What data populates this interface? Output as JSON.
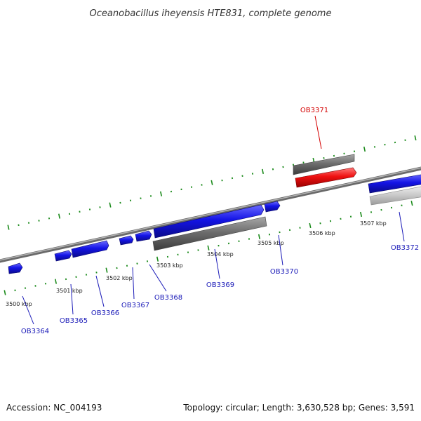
{
  "title": "Oceanobacillus iheyensis HTE831, complete genome",
  "footer": {
    "accession": "Accession: NC_004193",
    "stats": "Topology: circular; Length: 3,630,528 bp; Genes: 3,591"
  },
  "colors": {
    "forward_gene": "#1414e6",
    "reverse_gene": "#1414e6",
    "highlight_gene": "#ee1010",
    "gene_label": "#1a1ab8",
    "highlight_label": "#d40000",
    "tick": "#1a8a1a",
    "backbone": "#8c8c8c",
    "track_dark": "#6e6e6e",
    "track_light": "#c8c8c8"
  },
  "axis": {
    "unit": "kbp",
    "labels": [
      "3500 kbp",
      "3501 kbp",
      "3502 kbp",
      "3503 kbp",
      "3504 kbp",
      "3505 kbp",
      "3506 kbp",
      "3507 kbp"
    ]
  },
  "genes": [
    {
      "name": "OB3364"
    },
    {
      "name": "OB3365"
    },
    {
      "name": "OB3366"
    },
    {
      "name": "OB3367"
    },
    {
      "name": "OB3368"
    },
    {
      "name": "OB3369"
    },
    {
      "name": "OB3370"
    },
    {
      "name": "OB3371",
      "highlight": true
    },
    {
      "name": "OB3372"
    }
  ]
}
